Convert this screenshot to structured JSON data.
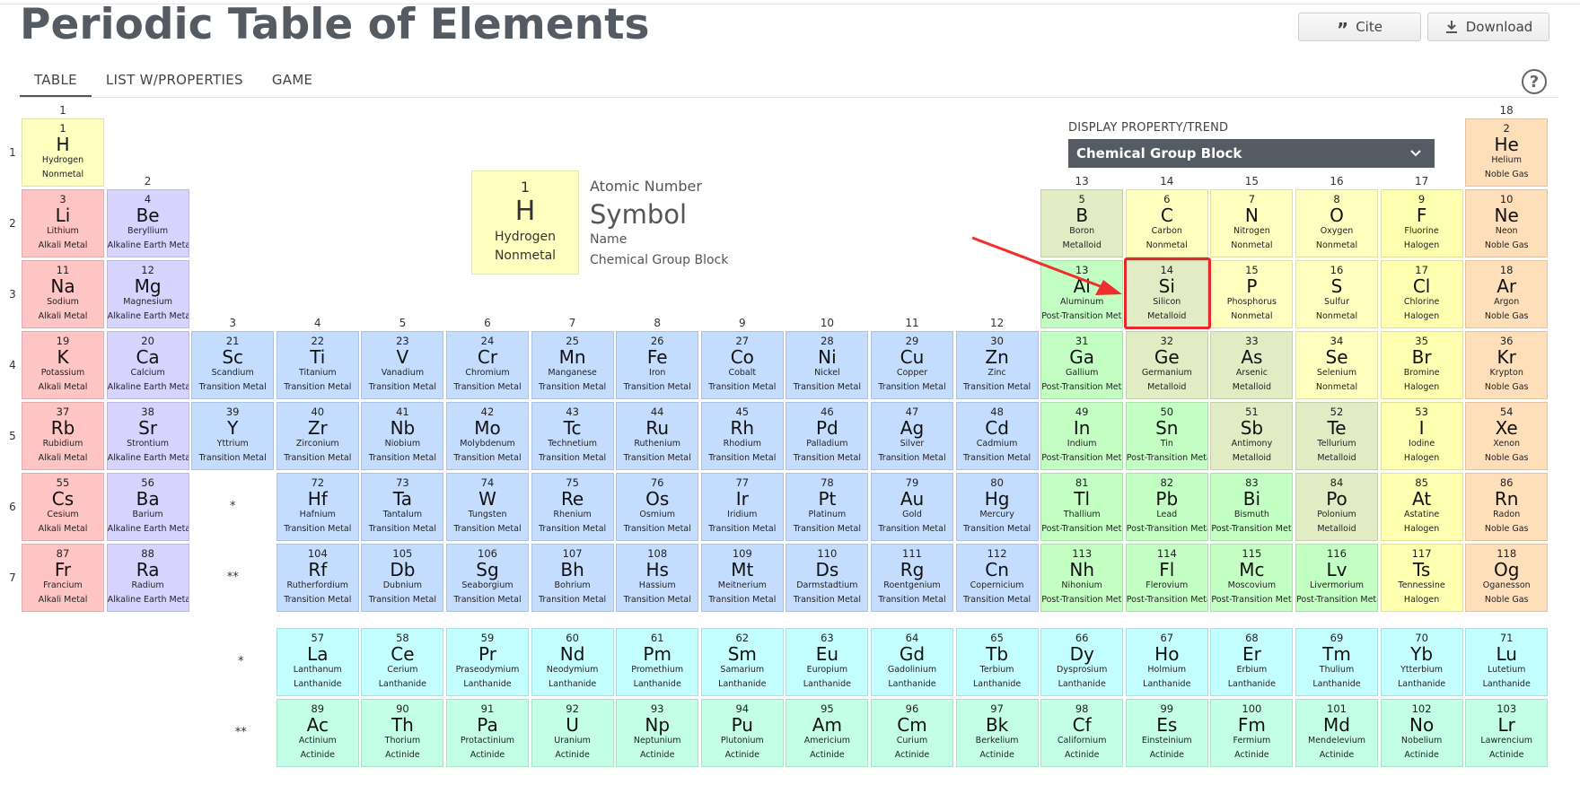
{
  "header": {
    "title": "Periodic Table of Elements",
    "cite_label": "Cite",
    "download_label": "Download"
  },
  "tabs": [
    {
      "label": "TABLE",
      "active": true
    },
    {
      "label": "LIST W/PROPERTIES",
      "active": false
    },
    {
      "label": "GAME",
      "active": false
    }
  ],
  "help_label": "?",
  "legend": {
    "number": "1",
    "symbol": "H",
    "name": "Hydrogen",
    "group": "Nonmetal",
    "atomic_number_label": "Atomic Number",
    "symbol_label": "Symbol",
    "name_label": "Name",
    "group_label": "Chemical Group Block"
  },
  "display_property": {
    "label": "DISPLAY PROPERTY/TREND",
    "selected": "Chemical Group Block"
  },
  "highlighted_element": "Si",
  "lanthanide_marker": "*",
  "actinide_marker": "**",
  "group_labels": [
    "1",
    "2",
    "3",
    "4",
    "5",
    "6",
    "7",
    "8",
    "9",
    "10",
    "11",
    "12",
    "13",
    "14",
    "15",
    "16",
    "17",
    "18"
  ],
  "period_labels": [
    "1",
    "2",
    "3",
    "4",
    "5",
    "6",
    "7"
  ],
  "colors": {
    "Nonmetal": "#ffffbf",
    "Noble Gas": "#ffdfba",
    "Alkali Metal": "#ffc4c4",
    "Alkaline Earth Metal": "#d6d4ff",
    "Transition Metal": "#c4ddff",
    "Post-Transition Metal": "#c3ffc3",
    "Metalloid": "#e2ecc4",
    "Halogen": "#ffffb0",
    "Lanthanide": "#c4ffff",
    "Actinide": "#c3ffe6"
  },
  "elements": [
    {
      "n": "1",
      "s": "H",
      "name": "Hydrogen",
      "g": "Nonmetal",
      "col": 1,
      "row": 1
    },
    {
      "n": "2",
      "s": "He",
      "name": "Helium",
      "g": "Noble Gas",
      "col": 18,
      "row": 1
    },
    {
      "n": "3",
      "s": "Li",
      "name": "Lithium",
      "g": "Alkali Metal",
      "col": 1,
      "row": 2
    },
    {
      "n": "4",
      "s": "Be",
      "name": "Beryllium",
      "g": "Alkaline Earth Metal",
      "col": 2,
      "row": 2
    },
    {
      "n": "5",
      "s": "B",
      "name": "Boron",
      "g": "Metalloid",
      "col": 13,
      "row": 2
    },
    {
      "n": "6",
      "s": "C",
      "name": "Carbon",
      "g": "Nonmetal",
      "col": 14,
      "row": 2
    },
    {
      "n": "7",
      "s": "N",
      "name": "Nitrogen",
      "g": "Nonmetal",
      "col": 15,
      "row": 2
    },
    {
      "n": "8",
      "s": "O",
      "name": "Oxygen",
      "g": "Nonmetal",
      "col": 16,
      "row": 2
    },
    {
      "n": "9",
      "s": "F",
      "name": "Fluorine",
      "g": "Halogen",
      "col": 17,
      "row": 2
    },
    {
      "n": "10",
      "s": "Ne",
      "name": "Neon",
      "g": "Noble Gas",
      "col": 18,
      "row": 2
    },
    {
      "n": "11",
      "s": "Na",
      "name": "Sodium",
      "g": "Alkali Metal",
      "col": 1,
      "row": 3
    },
    {
      "n": "12",
      "s": "Mg",
      "name": "Magnesium",
      "g": "Alkaline Earth Metal",
      "col": 2,
      "row": 3
    },
    {
      "n": "13",
      "s": "Al",
      "name": "Aluminum",
      "g": "Post-Transition Metal",
      "col": 13,
      "row": 3
    },
    {
      "n": "14",
      "s": "Si",
      "name": "Silicon",
      "g": "Metalloid",
      "col": 14,
      "row": 3
    },
    {
      "n": "15",
      "s": "P",
      "name": "Phosphorus",
      "g": "Nonmetal",
      "col": 15,
      "row": 3
    },
    {
      "n": "16",
      "s": "S",
      "name": "Sulfur",
      "g": "Nonmetal",
      "col": 16,
      "row": 3
    },
    {
      "n": "17",
      "s": "Cl",
      "name": "Chlorine",
      "g": "Halogen",
      "col": 17,
      "row": 3
    },
    {
      "n": "18",
      "s": "Ar",
      "name": "Argon",
      "g": "Noble Gas",
      "col": 18,
      "row": 3
    },
    {
      "n": "19",
      "s": "K",
      "name": "Potassium",
      "g": "Alkali Metal",
      "col": 1,
      "row": 4
    },
    {
      "n": "20",
      "s": "Ca",
      "name": "Calcium",
      "g": "Alkaline Earth Metal",
      "col": 2,
      "row": 4
    },
    {
      "n": "21",
      "s": "Sc",
      "name": "Scandium",
      "g": "Transition Metal",
      "col": 3,
      "row": 4
    },
    {
      "n": "22",
      "s": "Ti",
      "name": "Titanium",
      "g": "Transition Metal",
      "col": 4,
      "row": 4
    },
    {
      "n": "23",
      "s": "V",
      "name": "Vanadium",
      "g": "Transition Metal",
      "col": 5,
      "row": 4
    },
    {
      "n": "24",
      "s": "Cr",
      "name": "Chromium",
      "g": "Transition Metal",
      "col": 6,
      "row": 4
    },
    {
      "n": "25",
      "s": "Mn",
      "name": "Manganese",
      "g": "Transition Metal",
      "col": 7,
      "row": 4
    },
    {
      "n": "26",
      "s": "Fe",
      "name": "Iron",
      "g": "Transition Metal",
      "col": 8,
      "row": 4
    },
    {
      "n": "27",
      "s": "Co",
      "name": "Cobalt",
      "g": "Transition Metal",
      "col": 9,
      "row": 4
    },
    {
      "n": "28",
      "s": "Ni",
      "name": "Nickel",
      "g": "Transition Metal",
      "col": 10,
      "row": 4
    },
    {
      "n": "29",
      "s": "Cu",
      "name": "Copper",
      "g": "Transition Metal",
      "col": 11,
      "row": 4
    },
    {
      "n": "30",
      "s": "Zn",
      "name": "Zinc",
      "g": "Transition Metal",
      "col": 12,
      "row": 4
    },
    {
      "n": "31",
      "s": "Ga",
      "name": "Gallium",
      "g": "Post-Transition Metal",
      "col": 13,
      "row": 4
    },
    {
      "n": "32",
      "s": "Ge",
      "name": "Germanium",
      "g": "Metalloid",
      "col": 14,
      "row": 4
    },
    {
      "n": "33",
      "s": "As",
      "name": "Arsenic",
      "g": "Metalloid",
      "col": 15,
      "row": 4
    },
    {
      "n": "34",
      "s": "Se",
      "name": "Selenium",
      "g": "Nonmetal",
      "col": 16,
      "row": 4
    },
    {
      "n": "35",
      "s": "Br",
      "name": "Bromine",
      "g": "Halogen",
      "col": 17,
      "row": 4
    },
    {
      "n": "36",
      "s": "Kr",
      "name": "Krypton",
      "g": "Noble Gas",
      "col": 18,
      "row": 4
    },
    {
      "n": "37",
      "s": "Rb",
      "name": "Rubidium",
      "g": "Alkali Metal",
      "col": 1,
      "row": 5
    },
    {
      "n": "38",
      "s": "Sr",
      "name": "Strontium",
      "g": "Alkaline Earth Metal",
      "col": 2,
      "row": 5
    },
    {
      "n": "39",
      "s": "Y",
      "name": "Yttrium",
      "g": "Transition Metal",
      "col": 3,
      "row": 5
    },
    {
      "n": "40",
      "s": "Zr",
      "name": "Zirconium",
      "g": "Transition Metal",
      "col": 4,
      "row": 5
    },
    {
      "n": "41",
      "s": "Nb",
      "name": "Niobium",
      "g": "Transition Metal",
      "col": 5,
      "row": 5
    },
    {
      "n": "42",
      "s": "Mo",
      "name": "Molybdenum",
      "g": "Transition Metal",
      "col": 6,
      "row": 5
    },
    {
      "n": "43",
      "s": "Tc",
      "name": "Technetium",
      "g": "Transition Metal",
      "col": 7,
      "row": 5
    },
    {
      "n": "44",
      "s": "Ru",
      "name": "Ruthenium",
      "g": "Transition Metal",
      "col": 8,
      "row": 5
    },
    {
      "n": "45",
      "s": "Rh",
      "name": "Rhodium",
      "g": "Transition Metal",
      "col": 9,
      "row": 5
    },
    {
      "n": "46",
      "s": "Pd",
      "name": "Palladium",
      "g": "Transition Metal",
      "col": 10,
      "row": 5
    },
    {
      "n": "47",
      "s": "Ag",
      "name": "Silver",
      "g": "Transition Metal",
      "col": 11,
      "row": 5
    },
    {
      "n": "48",
      "s": "Cd",
      "name": "Cadmium",
      "g": "Transition Metal",
      "col": 12,
      "row": 5
    },
    {
      "n": "49",
      "s": "In",
      "name": "Indium",
      "g": "Post-Transition Metal",
      "col": 13,
      "row": 5
    },
    {
      "n": "50",
      "s": "Sn",
      "name": "Tin",
      "g": "Post-Transition Metal",
      "col": 14,
      "row": 5
    },
    {
      "n": "51",
      "s": "Sb",
      "name": "Antimony",
      "g": "Metalloid",
      "col": 15,
      "row": 5
    },
    {
      "n": "52",
      "s": "Te",
      "name": "Tellurium",
      "g": "Metalloid",
      "col": 16,
      "row": 5
    },
    {
      "n": "53",
      "s": "I",
      "name": "Iodine",
      "g": "Halogen",
      "col": 17,
      "row": 5
    },
    {
      "n": "54",
      "s": "Xe",
      "name": "Xenon",
      "g": "Noble Gas",
      "col": 18,
      "row": 5
    },
    {
      "n": "55",
      "s": "Cs",
      "name": "Cesium",
      "g": "Alkali Metal",
      "col": 1,
      "row": 6
    },
    {
      "n": "56",
      "s": "Ba",
      "name": "Barium",
      "g": "Alkaline Earth Metal",
      "col": 2,
      "row": 6
    },
    {
      "n": "72",
      "s": "Hf",
      "name": "Hafnium",
      "g": "Transition Metal",
      "col": 4,
      "row": 6
    },
    {
      "n": "73",
      "s": "Ta",
      "name": "Tantalum",
      "g": "Transition Metal",
      "col": 5,
      "row": 6
    },
    {
      "n": "74",
      "s": "W",
      "name": "Tungsten",
      "g": "Transition Metal",
      "col": 6,
      "row": 6
    },
    {
      "n": "75",
      "s": "Re",
      "name": "Rhenium",
      "g": "Transition Metal",
      "col": 7,
      "row": 6
    },
    {
      "n": "76",
      "s": "Os",
      "name": "Osmium",
      "g": "Transition Metal",
      "col": 8,
      "row": 6
    },
    {
      "n": "77",
      "s": "Ir",
      "name": "Iridium",
      "g": "Transition Metal",
      "col": 9,
      "row": 6
    },
    {
      "n": "78",
      "s": "Pt",
      "name": "Platinum",
      "g": "Transition Metal",
      "col": 10,
      "row": 6
    },
    {
      "n": "79",
      "s": "Au",
      "name": "Gold",
      "g": "Transition Metal",
      "col": 11,
      "row": 6
    },
    {
      "n": "80",
      "s": "Hg",
      "name": "Mercury",
      "g": "Transition Metal",
      "col": 12,
      "row": 6
    },
    {
      "n": "81",
      "s": "Tl",
      "name": "Thallium",
      "g": "Post-Transition Metal",
      "col": 13,
      "row": 6
    },
    {
      "n": "82",
      "s": "Pb",
      "name": "Lead",
      "g": "Post-Transition Metal",
      "col": 14,
      "row": 6
    },
    {
      "n": "83",
      "s": "Bi",
      "name": "Bismuth",
      "g": "Post-Transition Metal",
      "col": 15,
      "row": 6
    },
    {
      "n": "84",
      "s": "Po",
      "name": "Polonium",
      "g": "Metalloid",
      "col": 16,
      "row": 6
    },
    {
      "n": "85",
      "s": "At",
      "name": "Astatine",
      "g": "Halogen",
      "col": 17,
      "row": 6
    },
    {
      "n": "86",
      "s": "Rn",
      "name": "Radon",
      "g": "Noble Gas",
      "col": 18,
      "row": 6
    },
    {
      "n": "87",
      "s": "Fr",
      "name": "Francium",
      "g": "Alkali Metal",
      "col": 1,
      "row": 7
    },
    {
      "n": "88",
      "s": "Ra",
      "name": "Radium",
      "g": "Alkaline Earth Metal",
      "col": 2,
      "row": 7
    },
    {
      "n": "104",
      "s": "Rf",
      "name": "Rutherfordium",
      "g": "Transition Metal",
      "col": 4,
      "row": 7
    },
    {
      "n": "105",
      "s": "Db",
      "name": "Dubnium",
      "g": "Transition Metal",
      "col": 5,
      "row": 7
    },
    {
      "n": "106",
      "s": "Sg",
      "name": "Seaborgium",
      "g": "Transition Metal",
      "col": 6,
      "row": 7
    },
    {
      "n": "107",
      "s": "Bh",
      "name": "Bohrium",
      "g": "Transition Metal",
      "col": 7,
      "row": 7
    },
    {
      "n": "108",
      "s": "Hs",
      "name": "Hassium",
      "g": "Transition Metal",
      "col": 8,
      "row": 7
    },
    {
      "n": "109",
      "s": "Mt",
      "name": "Meitnerium",
      "g": "Transition Metal",
      "col": 9,
      "row": 7
    },
    {
      "n": "110",
      "s": "Ds",
      "name": "Darmstadtium",
      "g": "Transition Metal",
      "col": 10,
      "row": 7
    },
    {
      "n": "111",
      "s": "Rg",
      "name": "Roentgenium",
      "g": "Transition Metal",
      "col": 11,
      "row": 7
    },
    {
      "n": "112",
      "s": "Cn",
      "name": "Copernicium",
      "g": "Transition Metal",
      "col": 12,
      "row": 7
    },
    {
      "n": "113",
      "s": "Nh",
      "name": "Nihonium",
      "g": "Post-Transition Metal",
      "col": 13,
      "row": 7
    },
    {
      "n": "114",
      "s": "Fl",
      "name": "Flerovium",
      "g": "Post-Transition Metal",
      "col": 14,
      "row": 7
    },
    {
      "n": "115",
      "s": "Mc",
      "name": "Moscovium",
      "g": "Post-Transition Metal",
      "col": 15,
      "row": 7
    },
    {
      "n": "116",
      "s": "Lv",
      "name": "Livermorium",
      "g": "Post-Transition Metal",
      "col": 16,
      "row": 7
    },
    {
      "n": "117",
      "s": "Ts",
      "name": "Tennessine",
      "g": "Halogen",
      "col": 17,
      "row": 7
    },
    {
      "n": "118",
      "s": "Og",
      "name": "Oganesson",
      "g": "Noble Gas",
      "col": 18,
      "row": 7
    },
    {
      "n": "57",
      "s": "La",
      "name": "Lanthanum",
      "g": "Lanthanide",
      "col": 4,
      "row": 8
    },
    {
      "n": "58",
      "s": "Ce",
      "name": "Cerium",
      "g": "Lanthanide",
      "col": 5,
      "row": 8
    },
    {
      "n": "59",
      "s": "Pr",
      "name": "Praseodymium",
      "g": "Lanthanide",
      "col": 6,
      "row": 8
    },
    {
      "n": "60",
      "s": "Nd",
      "name": "Neodymium",
      "g": "Lanthanide",
      "col": 7,
      "row": 8
    },
    {
      "n": "61",
      "s": "Pm",
      "name": "Promethium",
      "g": "Lanthanide",
      "col": 8,
      "row": 8
    },
    {
      "n": "62",
      "s": "Sm",
      "name": "Samarium",
      "g": "Lanthanide",
      "col": 9,
      "row": 8
    },
    {
      "n": "63",
      "s": "Eu",
      "name": "Europium",
      "g": "Lanthanide",
      "col": 10,
      "row": 8
    },
    {
      "n": "64",
      "s": "Gd",
      "name": "Gadolinium",
      "g": "Lanthanide",
      "col": 11,
      "row": 8
    },
    {
      "n": "65",
      "s": "Tb",
      "name": "Terbium",
      "g": "Lanthanide",
      "col": 12,
      "row": 8
    },
    {
      "n": "66",
      "s": "Dy",
      "name": "Dysprosium",
      "g": "Lanthanide",
      "col": 13,
      "row": 8
    },
    {
      "n": "67",
      "s": "Ho",
      "name": "Holmium",
      "g": "Lanthanide",
      "col": 14,
      "row": 8
    },
    {
      "n": "68",
      "s": "Er",
      "name": "Erbium",
      "g": "Lanthanide",
      "col": 15,
      "row": 8
    },
    {
      "n": "69",
      "s": "Tm",
      "name": "Thulium",
      "g": "Lanthanide",
      "col": 16,
      "row": 8
    },
    {
      "n": "70",
      "s": "Yb",
      "name": "Ytterbium",
      "g": "Lanthanide",
      "col": 17,
      "row": 8
    },
    {
      "n": "71",
      "s": "Lu",
      "name": "Lutetium",
      "g": "Lanthanide",
      "col": 18,
      "row": 8
    },
    {
      "n": "89",
      "s": "Ac",
      "name": "Actinium",
      "g": "Actinide",
      "col": 4,
      "row": 9
    },
    {
      "n": "90",
      "s": "Th",
      "name": "Thorium",
      "g": "Actinide",
      "col": 5,
      "row": 9
    },
    {
      "n": "91",
      "s": "Pa",
      "name": "Protactinium",
      "g": "Actinide",
      "col": 6,
      "row": 9
    },
    {
      "n": "92",
      "s": "U",
      "name": "Uranium",
      "g": "Actinide",
      "col": 7,
      "row": 9
    },
    {
      "n": "93",
      "s": "Np",
      "name": "Neptunium",
      "g": "Actinide",
      "col": 8,
      "row": 9
    },
    {
      "n": "94",
      "s": "Pu",
      "name": "Plutonium",
      "g": "Actinide",
      "col": 9,
      "row": 9
    },
    {
      "n": "95",
      "s": "Am",
      "name": "Americium",
      "g": "Actinide",
      "col": 10,
      "row": 9
    },
    {
      "n": "96",
      "s": "Cm",
      "name": "Curium",
      "g": "Actinide",
      "col": 11,
      "row": 9
    },
    {
      "n": "97",
      "s": "Bk",
      "name": "Berkelium",
      "g": "Actinide",
      "col": 12,
      "row": 9
    },
    {
      "n": "98",
      "s": "Cf",
      "name": "Californium",
      "g": "Actinide",
      "col": 13,
      "row": 9
    },
    {
      "n": "99",
      "s": "Es",
      "name": "Einsteinium",
      "g": "Actinide",
      "col": 14,
      "row": 9
    },
    {
      "n": "100",
      "s": "Fm",
      "name": "Fermium",
      "g": "Actinide",
      "col": 15,
      "row": 9
    },
    {
      "n": "101",
      "s": "Md",
      "name": "Mendelevium",
      "g": "Actinide",
      "col": 16,
      "row": 9
    },
    {
      "n": "102",
      "s": "No",
      "name": "Nobelium",
      "g": "Actinide",
      "col": 17,
      "row": 9
    },
    {
      "n": "103",
      "s": "Lr",
      "name": "Lawrencium",
      "g": "Actinide",
      "col": 18,
      "row": 9
    }
  ]
}
